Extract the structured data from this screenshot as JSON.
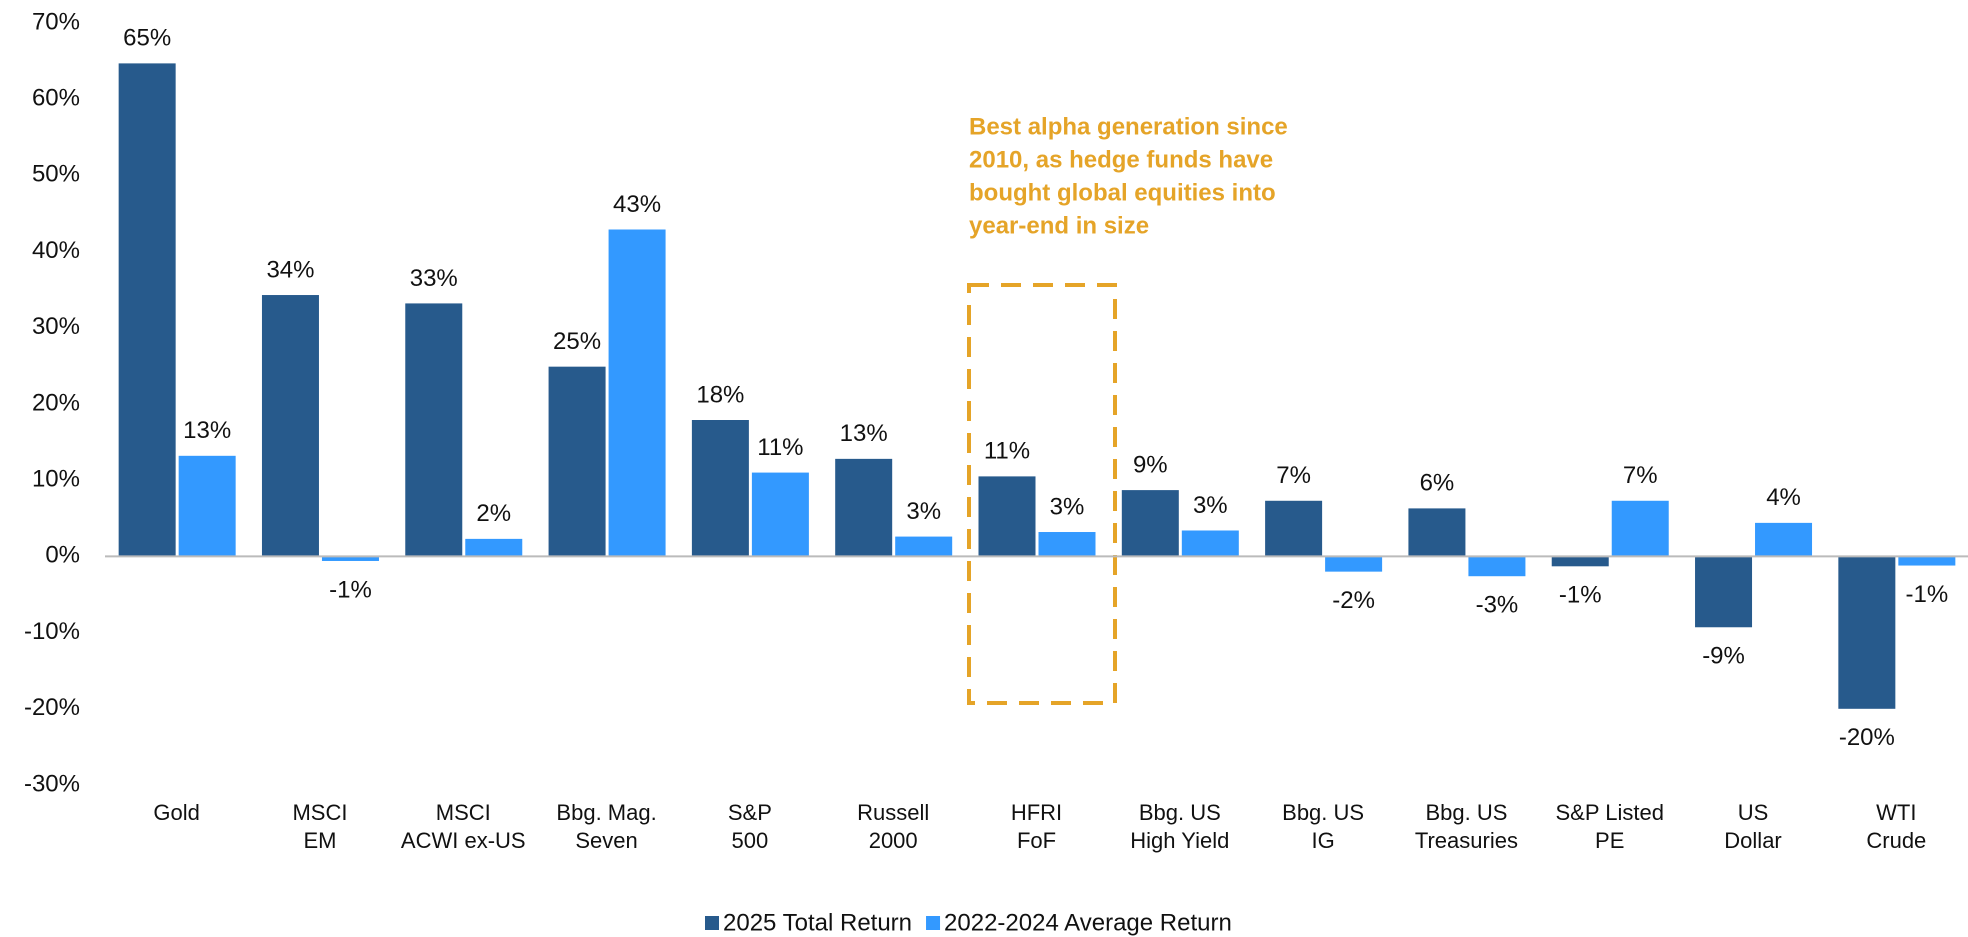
{
  "chart_data": {
    "type": "bar",
    "categories": [
      [
        "Gold"
      ],
      [
        "MSCI",
        "EM"
      ],
      [
        "MSCI",
        "ACWI ex-US"
      ],
      [
        "Bbg. Mag.",
        "Seven"
      ],
      [
        "S&P",
        "500"
      ],
      [
        "Russell",
        "2000"
      ],
      [
        "HFRI",
        "FoF"
      ],
      [
        "Bbg. US",
        "High Yield"
      ],
      [
        "Bbg. US",
        "IG"
      ],
      [
        "Bbg. US",
        "Treasuries"
      ],
      [
        "S&P Listed",
        "PE"
      ],
      [
        "US",
        "Dollar"
      ],
      [
        "WTI",
        "Crude"
      ]
    ],
    "series": [
      {
        "name": "2025 Total Return",
        "color": "#275a8c",
        "values": [
          64.7,
          34.3,
          33.2,
          24.9,
          17.9,
          12.8,
          10.5,
          8.7,
          7.3,
          6.3,
          -1.3,
          -9.3,
          -20.0
        ],
        "value_labels": [
          "65%",
          "34%",
          "33%",
          "25%",
          "18%",
          "13%",
          "11%",
          "9%",
          "7%",
          "6%",
          "-1%",
          "-9%",
          "-20%"
        ]
      },
      {
        "name": "2022-2024 Average Return",
        "color": "#3399ff",
        "values": [
          13.2,
          -0.6,
          2.3,
          42.9,
          11.0,
          2.6,
          3.2,
          3.4,
          -2.0,
          -2.6,
          7.3,
          4.4,
          -1.2
        ],
        "value_labels": [
          "13%",
          "-1%",
          "2%",
          "43%",
          "11%",
          "3%",
          "3%",
          "3%",
          "-2%",
          "-3%",
          "7%",
          "4%",
          "-1%"
        ]
      }
    ],
    "ylim": [
      -30,
      70
    ],
    "yticks": [
      {
        "value": -30,
        "label": "-30%"
      },
      {
        "value": -20,
        "label": "-20%"
      },
      {
        "value": -10,
        "label": "-10%"
      },
      {
        "value": 0,
        "label": "0%"
      },
      {
        "value": 10,
        "label": "10%"
      },
      {
        "value": 20,
        "label": "20%"
      },
      {
        "value": 30,
        "label": "30%"
      },
      {
        "value": 40,
        "label": "40%"
      },
      {
        "value": 50,
        "label": "50%"
      },
      {
        "value": 60,
        "label": "60%"
      },
      {
        "value": 70,
        "label": "70%"
      }
    ],
    "annotation": [
      "Best alpha generation since",
      "2010, as hedge funds have",
      "bought global equities into",
      "year-end in size"
    ],
    "legend": "bottom"
  }
}
